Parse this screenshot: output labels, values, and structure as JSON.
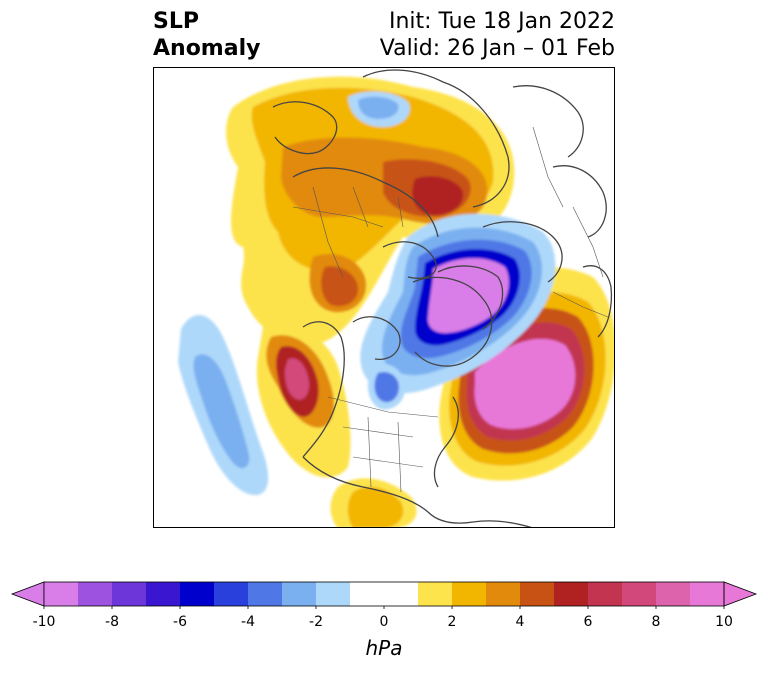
{
  "header": {
    "variable": "SLP",
    "quantity": "Anomaly",
    "init": "Init: Tue 18 Jan 2022",
    "valid": "Valid: 26 Jan – 01 Feb"
  },
  "colorbar": {
    "unit": "hPa",
    "ticks": [
      "-10",
      "-8",
      "-6",
      "-4",
      "-2",
      "0",
      "2",
      "4",
      "6",
      "8",
      "10"
    ],
    "levels": [
      -10,
      -9,
      -8,
      -7,
      -6,
      -5,
      -4,
      -3,
      -2,
      -1,
      1,
      2,
      3,
      4,
      5,
      6,
      7,
      8,
      9,
      10
    ],
    "colors": [
      "#d97ee8",
      "#9e52e0",
      "#6d36d9",
      "#3a16d0",
      "#0000cc",
      "#2a40dc",
      "#4f78e6",
      "#7ab0f0",
      "#aed8fa",
      "#ffffff",
      "#fde34c",
      "#f2b600",
      "#e28a0c",
      "#c85214",
      "#b02222",
      "#c23450",
      "#d2487a",
      "#de63ad",
      "#e878d8"
    ],
    "under_color": "#d97ee8",
    "over_color": "#e878d8"
  }
}
